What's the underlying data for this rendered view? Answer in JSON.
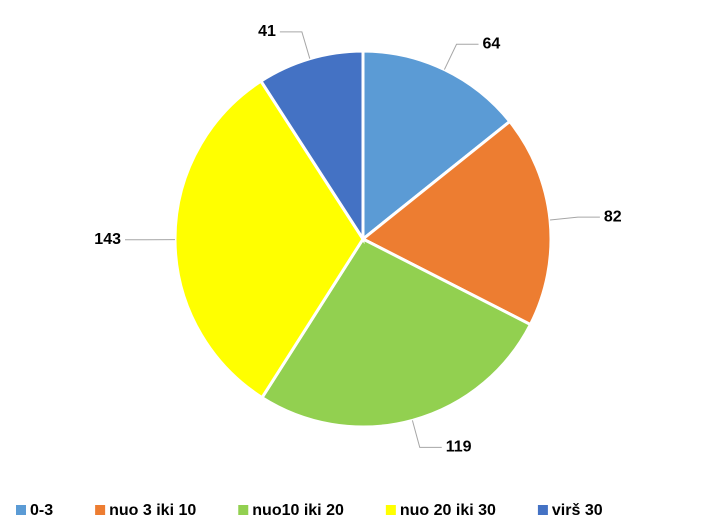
{
  "chart_data": {
    "type": "pie",
    "categories": [
      "0-3",
      "nuo 3 iki 10",
      "nuo10 iki 20",
      "nuo 20 iki 30",
      "virš 30"
    ],
    "values": [
      64,
      82,
      119,
      143,
      41
    ],
    "colors": [
      "#5b9bd5",
      "#ed7d31",
      "#92d050",
      "#ffff00",
      "#4472c4"
    ],
    "legend": "bottom"
  }
}
